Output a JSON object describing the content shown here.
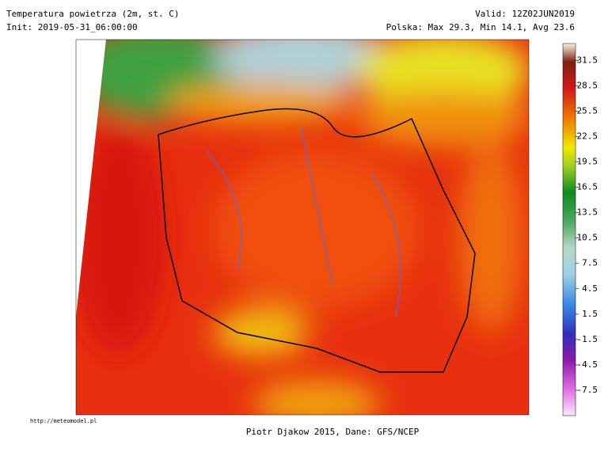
{
  "header": {
    "title": "Temperatura powietrza (2m, st. C)",
    "init": "Init: 2019-05-31_06:00:00",
    "valid": "Valid: 12Z02JUN2019",
    "stats": "Polska: Max 29.3, Min 14.1, Avg 23.6"
  },
  "colorbar": {
    "lim": [
      -10.5,
      33.5
    ],
    "ticks": [
      31.5,
      28.5,
      25.5,
      22.5,
      19.5,
      16.5,
      13.5,
      10.5,
      7.5,
      4.5,
      1.5,
      -1.5,
      -4.5,
      -7.5
    ]
  },
  "footer": {
    "credit": "Piotr Djakow 2015, Dane: GFS/NCEP",
    "url": "http://meteomodel.pl"
  }
}
